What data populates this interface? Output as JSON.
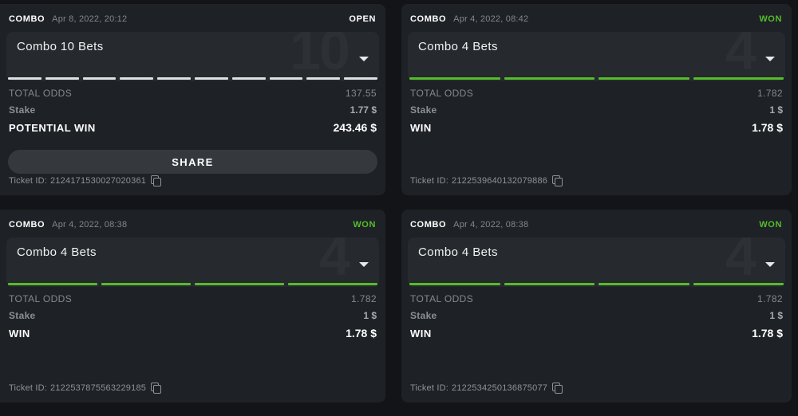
{
  "colors": {
    "green": "#55bd2b",
    "open_segment": "#dfe0e1",
    "page_bg": "#131418",
    "card_bg": "#1e2125",
    "panel_bg": "#26292d"
  },
  "cards": [
    {
      "type_label": "COMBO",
      "datetime": "Apr 8, 2022, 20:12",
      "status": "OPEN",
      "title": "Combo 10 Bets",
      "ghost_number": "10",
      "segments_count": 10,
      "won": false,
      "total_odds_label": "TOTAL ODDS",
      "total_odds": "137.55",
      "stake_label": "Stake",
      "stake": "1.77 $",
      "win_label": "POTENTIAL WIN",
      "win": "243.46 $",
      "share_label": "SHARE",
      "ticket_label": "Ticket ID:",
      "ticket_id": "2124171530027020361"
    },
    {
      "type_label": "COMBO",
      "datetime": "Apr 4, 2022, 08:42",
      "status": "WON",
      "title": "Combo 4 Bets",
      "ghost_number": "4",
      "segments_count": 4,
      "won": true,
      "total_odds_label": "TOTAL ODDS",
      "total_odds": "1.782",
      "stake_label": "Stake",
      "stake": "1 $",
      "win_label": "WIN",
      "win": "1.78 $",
      "ticket_label": "Ticket ID:",
      "ticket_id": "2122539640132079886"
    },
    {
      "type_label": "COMBO",
      "datetime": "Apr 4, 2022, 08:38",
      "status": "WON",
      "title": "Combo 4 Bets",
      "ghost_number": "4",
      "segments_count": 4,
      "won": true,
      "total_odds_label": "TOTAL ODDS",
      "total_odds": "1.782",
      "stake_label": "Stake",
      "stake": "1 $",
      "win_label": "WIN",
      "win": "1.78 $",
      "ticket_label": "Ticket ID:",
      "ticket_id": "2122537875563229185"
    },
    {
      "type_label": "COMBO",
      "datetime": "Apr 4, 2022, 08:38",
      "status": "WON",
      "title": "Combo 4 Bets",
      "ghost_number": "4",
      "segments_count": 4,
      "won": true,
      "total_odds_label": "TOTAL ODDS",
      "total_odds": "1.782",
      "stake_label": "Stake",
      "stake": "1 $",
      "win_label": "WIN",
      "win": "1.78 $",
      "ticket_label": "Ticket ID:",
      "ticket_id": "2122534250136875077"
    }
  ]
}
